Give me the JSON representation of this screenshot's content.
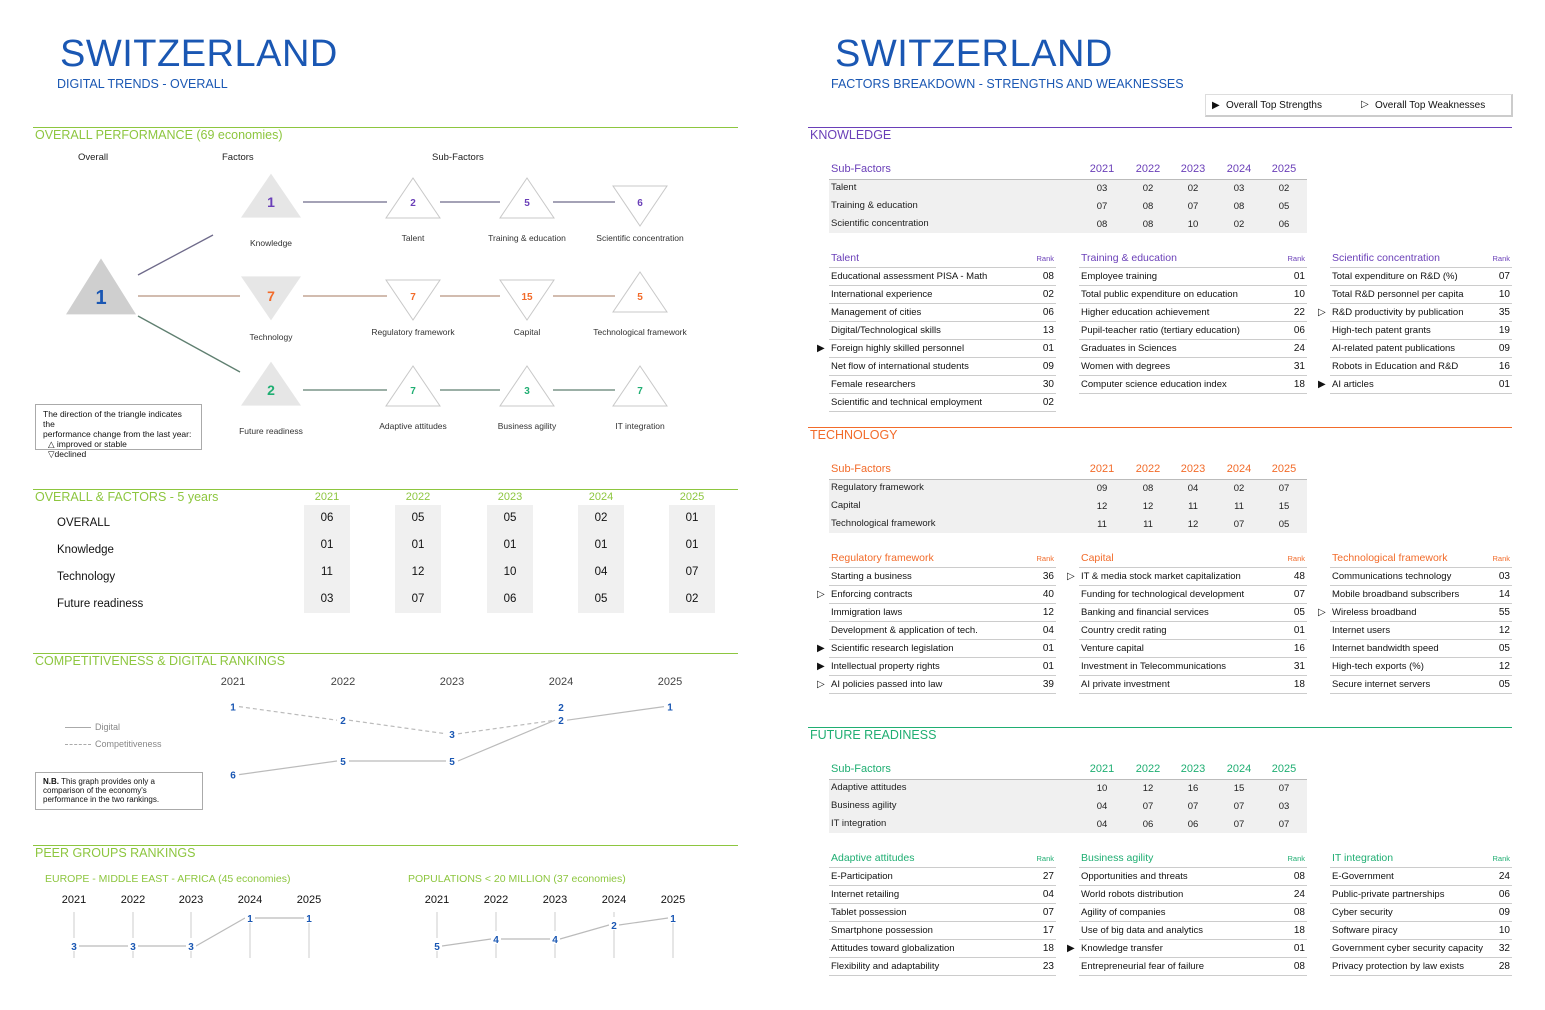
{
  "left": {
    "title": "SWITZERLAND",
    "subtitle": "DIGITAL TRENDS - OVERALL",
    "performance": {
      "title": "OVERALL PERFORMANCE  (69 economies)",
      "col_overall": "Overall",
      "col_factors": "Factors",
      "col_subfactors": "Sub-Factors",
      "overall": {
        "rank": "1",
        "direction": "up",
        "color": "#1a57b3"
      },
      "factors": [
        {
          "name": "Knowledge",
          "rank": "1",
          "direction": "up",
          "color": "#6a3fb8",
          "line_color": "#6e6a8a",
          "subfactors": [
            {
              "name": "Talent",
              "rank": "2",
              "direction": "up"
            },
            {
              "name": "Training & education",
              "rank": "5",
              "direction": "up"
            },
            {
              "name": "Scientific concentration",
              "rank": "6",
              "direction": "down"
            }
          ]
        },
        {
          "name": "Technology",
          "rank": "7",
          "direction": "down",
          "color": "#f26b2a",
          "line_color": "#b8957f",
          "subfactors": [
            {
              "name": "Regulatory framework",
              "rank": "7",
              "direction": "down"
            },
            {
              "name": "Capital",
              "rank": "15",
              "direction": "down"
            },
            {
              "name": "Technological framework",
              "rank": "5",
              "direction": "up"
            }
          ]
        },
        {
          "name": "Future readiness",
          "rank": "2",
          "direction": "up",
          "color": "#1fae72",
          "line_color": "#5f7f70",
          "subfactors": [
            {
              "name": "Adaptive attitudes",
              "rank": "7",
              "direction": "up"
            },
            {
              "name": "Business agility",
              "rank": "3",
              "direction": "up"
            },
            {
              "name": "IT integration",
              "rank": "7",
              "direction": "up"
            }
          ]
        }
      ],
      "note_line1": "The direction of the triangle indicates the",
      "note_line2": "performance change from the last year:",
      "note_line3": "△ improved or stable",
      "note_line4": "▽declined"
    },
    "five_years": {
      "title": "OVERALL & FACTORS - 5 years",
      "years": [
        "2021",
        "2022",
        "2023",
        "2024",
        "2025"
      ],
      "rows": [
        {
          "label": "OVERALL",
          "values": [
            "06",
            "05",
            "05",
            "02",
            "01"
          ]
        },
        {
          "label": "Knowledge",
          "values": [
            "01",
            "01",
            "01",
            "01",
            "01"
          ]
        },
        {
          "label": "Technology",
          "values": [
            "11",
            "12",
            "10",
            "04",
            "07"
          ]
        },
        {
          "label": "Future readiness",
          "values": [
            "03",
            "07",
            "06",
            "05",
            "02"
          ]
        }
      ]
    },
    "comp_digital": {
      "title": "COMPETITIVENESS & DIGITAL RANKINGS",
      "legend_digital": "Digital",
      "legend_comp": "Competitiveness",
      "note_bold": "N.B.",
      "note_line1": " This graph provides only a",
      "note_line2": "comparison of the economy's",
      "note_line3": "performance in the two rankings."
    },
    "peer": {
      "title": "PEER GROUPS RANKINGS"
    }
  },
  "chart_data": [
    {
      "type": "line",
      "title": "COMPETITIVENESS & DIGITAL RANKINGS",
      "categories": [
        "2021",
        "2022",
        "2023",
        "2024",
        "2025"
      ],
      "series": [
        {
          "name": "Digital",
          "values": [
            6,
            5,
            5,
            2,
            1
          ]
        },
        {
          "name": "Competitiveness",
          "values": [
            1,
            2,
            3,
            2,
            null
          ]
        }
      ],
      "y_inverted": true
    },
    {
      "type": "line",
      "title": "EUROPE - MIDDLE EAST - AFRICA (45 economies)",
      "categories": [
        "2021",
        "2022",
        "2023",
        "2024",
        "2025"
      ],
      "values": [
        3,
        3,
        3,
        1,
        1
      ]
    },
    {
      "type": "line",
      "title": "POPULATIONS < 20 MILLION (37 economies)",
      "categories": [
        "2021",
        "2022",
        "2023",
        "2024",
        "2025"
      ],
      "values": [
        5,
        4,
        4,
        2,
        1
      ]
    }
  ],
  "right": {
    "title": "SWITZERLAND",
    "subtitle": "FACTORS BREAKDOWN - STRENGTHS AND WEAKNESSES",
    "legend_strengths": "Overall Top Strengths",
    "legend_weaknesses": "Overall Top Weaknesses",
    "sections": [
      {
        "title": "KNOWLEDGE",
        "color": "#6a3fb8",
        "sub_header": "Sub-Factors",
        "years": [
          "2021",
          "2022",
          "2023",
          "2024",
          "2025"
        ],
        "subfactors": [
          {
            "name": "Talent",
            "ranks": [
              "03",
              "02",
              "02",
              "03",
              "02"
            ]
          },
          {
            "name": "Training & education",
            "ranks": [
              "07",
              "08",
              "07",
              "08",
              "05"
            ]
          },
          {
            "name": "Scientific concentration",
            "ranks": [
              "08",
              "08",
              "10",
              "02",
              "06"
            ]
          }
        ],
        "details": [
          {
            "title": "Talent",
            "rank_label": "Rank",
            "items": [
              {
                "name": "Educational assessment PISA - Math",
                "rank": "08"
              },
              {
                "name": "International experience",
                "rank": "02"
              },
              {
                "name": "Management of cities",
                "rank": "06"
              },
              {
                "name": "Digital/Technological skills",
                "rank": "13"
              },
              {
                "name": "Foreign highly skilled personnel",
                "rank": "01",
                "marker": "strength"
              },
              {
                "name": "Net flow of international students",
                "rank": "09"
              },
              {
                "name": "Female researchers",
                "rank": "30"
              },
              {
                "name": "Scientific and technical employment",
                "rank": "02"
              }
            ]
          },
          {
            "title": "Training & education",
            "rank_label": "Rank",
            "items": [
              {
                "name": "Employee training",
                "rank": "01"
              },
              {
                "name": "Total public expenditure on education",
                "rank": "10"
              },
              {
                "name": "Higher education achievement",
                "rank": "22"
              },
              {
                "name": "Pupil-teacher ratio (tertiary education)",
                "rank": "06"
              },
              {
                "name": "Graduates in Sciences",
                "rank": "24"
              },
              {
                "name": "Women with degrees",
                "rank": "31"
              },
              {
                "name": "Computer science education index",
                "rank": "18"
              }
            ]
          },
          {
            "title": "Scientific concentration",
            "rank_label": "Rank",
            "items": [
              {
                "name": "Total expenditure on R&D (%)",
                "rank": "07"
              },
              {
                "name": "Total R&D personnel per capita",
                "rank": "10"
              },
              {
                "name": "R&D productivity by publication",
                "rank": "35",
                "marker": "weakness"
              },
              {
                "name": "High-tech patent grants",
                "rank": "19"
              },
              {
                "name": "AI-related patent publications",
                "rank": "09"
              },
              {
                "name": "Robots in Education and R&D",
                "rank": "16"
              },
              {
                "name": "AI articles",
                "rank": "01",
                "marker": "strength"
              }
            ]
          }
        ]
      },
      {
        "title": "TECHNOLOGY",
        "color": "#f26b2a",
        "sub_header": "Sub-Factors",
        "years": [
          "2021",
          "2022",
          "2023",
          "2024",
          "2025"
        ],
        "subfactors": [
          {
            "name": "Regulatory framework",
            "ranks": [
              "09",
              "08",
              "04",
              "02",
              "07"
            ]
          },
          {
            "name": "Capital",
            "ranks": [
              "12",
              "12",
              "11",
              "11",
              "15"
            ]
          },
          {
            "name": "Technological framework",
            "ranks": [
              "11",
              "11",
              "12",
              "07",
              "05"
            ]
          }
        ],
        "details": [
          {
            "title": "Regulatory framework",
            "rank_label": "Rank",
            "items": [
              {
                "name": "Starting a business",
                "rank": "36"
              },
              {
                "name": "Enforcing contracts",
                "rank": "40",
                "marker": "weakness"
              },
              {
                "name": "Immigration laws",
                "rank": "12"
              },
              {
                "name": "Development & application of tech.",
                "rank": "04"
              },
              {
                "name": "Scientific research legislation",
                "rank": "01",
                "marker": "strength"
              },
              {
                "name": "Intellectual property rights",
                "rank": "01",
                "marker": "strength"
              },
              {
                "name": "AI policies passed into law",
                "rank": "39",
                "marker": "weakness"
              }
            ]
          },
          {
            "title": "Capital",
            "rank_label": "Rank",
            "items": [
              {
                "name": "IT & media stock market capitalization",
                "rank": "48",
                "marker": "weakness"
              },
              {
                "name": "Funding for technological development",
                "rank": "07"
              },
              {
                "name": "Banking and financial services",
                "rank": "05"
              },
              {
                "name": "Country credit rating",
                "rank": "01"
              },
              {
                "name": "Venture capital",
                "rank": "16"
              },
              {
                "name": "Investment in Telecommunications",
                "rank": "31"
              },
              {
                "name": "AI private investment",
                "rank": "18"
              }
            ]
          },
          {
            "title": "Technological framework",
            "rank_label": "Rank",
            "items": [
              {
                "name": "Communications technology",
                "rank": "03"
              },
              {
                "name": "Mobile broadband subscribers",
                "rank": "14"
              },
              {
                "name": "Wireless broadband",
                "rank": "55",
                "marker": "weakness"
              },
              {
                "name": "Internet users",
                "rank": "12"
              },
              {
                "name": "Internet bandwidth speed",
                "rank": "05"
              },
              {
                "name": "High-tech exports (%)",
                "rank": "12"
              },
              {
                "name": "Secure internet servers",
                "rank": "05"
              }
            ]
          }
        ]
      },
      {
        "title": "FUTURE READINESS",
        "color": "#1fae72",
        "sub_header": "Sub-Factors",
        "years": [
          "2021",
          "2022",
          "2023",
          "2024",
          "2025"
        ],
        "subfactors": [
          {
            "name": "Adaptive attitudes",
            "ranks": [
              "10",
              "12",
              "16",
              "15",
              "07"
            ]
          },
          {
            "name": "Business agility",
            "ranks": [
              "04",
              "07",
              "07",
              "07",
              "03"
            ]
          },
          {
            "name": "IT integration",
            "ranks": [
              "04",
              "06",
              "06",
              "07",
              "07"
            ]
          }
        ],
        "details": [
          {
            "title": "Adaptive attitudes",
            "rank_label": "Rank",
            "items": [
              {
                "name": "E-Participation",
                "rank": "27"
              },
              {
                "name": "Internet retailing",
                "rank": "04"
              },
              {
                "name": "Tablet possession",
                "rank": "07"
              },
              {
                "name": "Smartphone possession",
                "rank": "17"
              },
              {
                "name": "Attitudes toward globalization",
                "rank": "18"
              },
              {
                "name": "Flexibility and adaptability",
                "rank": "23"
              }
            ]
          },
          {
            "title": "Business agility",
            "rank_label": "Rank",
            "items": [
              {
                "name": "Opportunities and threats",
                "rank": "08"
              },
              {
                "name": "World robots distribution",
                "rank": "24"
              },
              {
                "name": "Agility of companies",
                "rank": "08"
              },
              {
                "name": "Use of big data and analytics",
                "rank": "18"
              },
              {
                "name": "Knowledge transfer",
                "rank": "01",
                "marker": "strength"
              },
              {
                "name": "Entrepreneurial fear of failure",
                "rank": "08"
              }
            ]
          },
          {
            "title": "IT integration",
            "rank_label": "Rank",
            "items": [
              {
                "name": "E-Government",
                "rank": "24"
              },
              {
                "name": "Public-private partnerships",
                "rank": "06"
              },
              {
                "name": "Cyber security",
                "rank": "09"
              },
              {
                "name": "Software piracy",
                "rank": "10"
              },
              {
                "name": "Government cyber security capacity",
                "rank": "32"
              },
              {
                "name": "Privacy protection by law exists",
                "rank": "28"
              }
            ]
          }
        ]
      }
    ]
  }
}
